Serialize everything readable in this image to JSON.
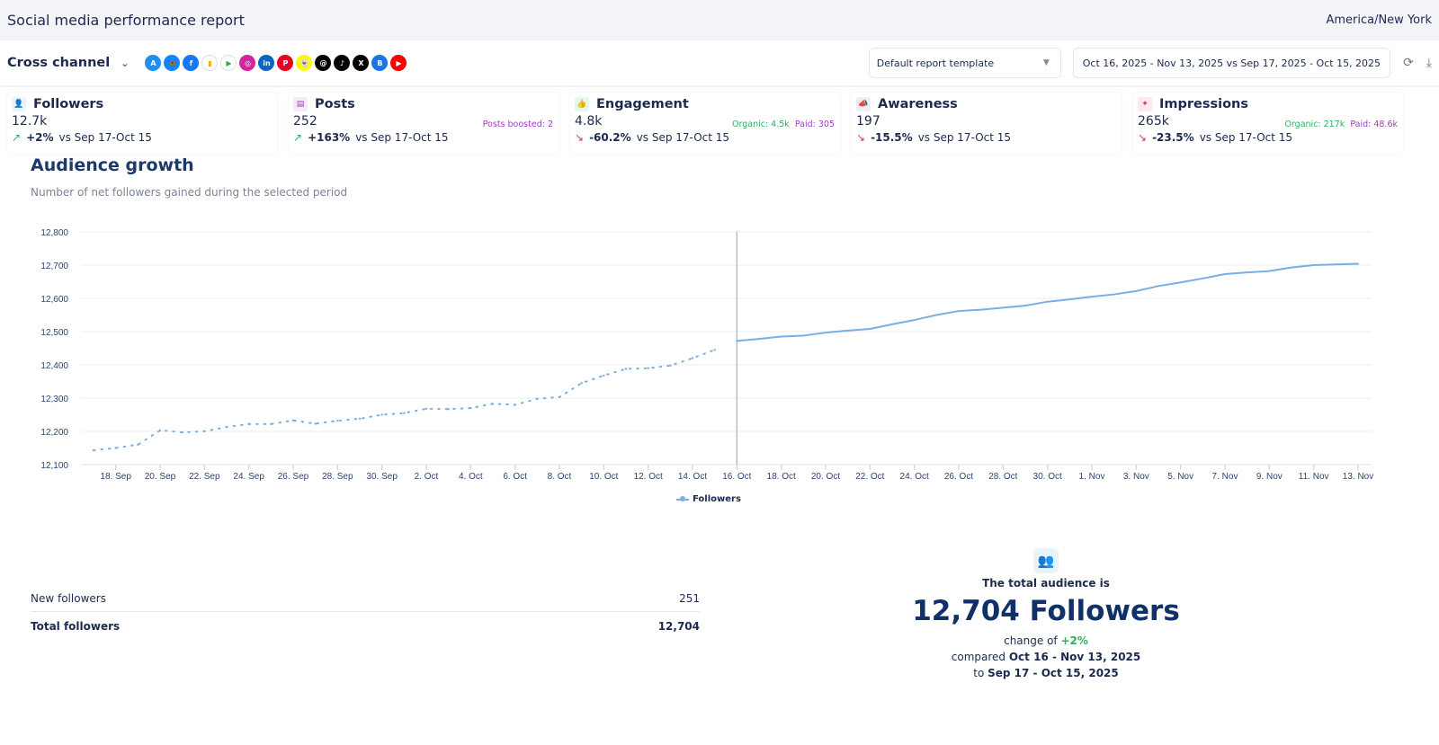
{
  "header": {
    "title": "Social media performance report",
    "timezone": "America/New York"
  },
  "toolbar": {
    "channel": "Cross channel",
    "template": "Default report template",
    "date_range": "Oct 16, 2025 - Nov 13, 2025 vs Sep 17, 2025 - Oct 15, 2025",
    "networks": [
      {
        "name": "app-store",
        "glyph": "A",
        "color": "#1f8ef1"
      },
      {
        "name": "bluesky",
        "glyph": "🦋",
        "color": "#1185fe"
      },
      {
        "name": "facebook",
        "glyph": "f",
        "color": "#1877f2"
      },
      {
        "name": "google-analytics",
        "glyph": "▮",
        "color": "#f9ab00"
      },
      {
        "name": "google-play",
        "glyph": "▶",
        "color": "#34a853"
      },
      {
        "name": "instagram",
        "glyph": "◎",
        "color": "#d6249f"
      },
      {
        "name": "linkedin",
        "glyph": "in",
        "color": "#0a66c2"
      },
      {
        "name": "pinterest",
        "glyph": "P",
        "color": "#e60023"
      },
      {
        "name": "snapchat",
        "glyph": "👻",
        "color": "#fffc00"
      },
      {
        "name": "threads",
        "glyph": "@",
        "color": "#000000"
      },
      {
        "name": "tiktok",
        "glyph": "♪",
        "color": "#000000"
      },
      {
        "name": "x",
        "glyph": "X",
        "color": "#000000"
      },
      {
        "name": "google-business",
        "glyph": "B",
        "color": "#1a73e8"
      },
      {
        "name": "youtube",
        "glyph": "▶",
        "color": "#ff0000"
      }
    ]
  },
  "cards": [
    {
      "title": "Followers",
      "value": "12.7k",
      "extra1": "",
      "extra2": "",
      "change": "+2%",
      "dir": "up",
      "vs": "vs Sep 17-Oct 15",
      "icon": "users-icon",
      "color": "#3a9bd5",
      "bg": "#e8f4fb"
    },
    {
      "title": "Posts",
      "value": "252",
      "extra1": "",
      "extra2": "Posts boosted: 2",
      "change": "+163%",
      "dir": "up",
      "vs": "vs Sep 17-Oct 15",
      "icon": "document-icon",
      "color": "#9b3fbf",
      "bg": "#f3eaf8"
    },
    {
      "title": "Engagement",
      "value": "4.8k",
      "extra1": "Organic: 4.5k",
      "extra2": "Paid: 305",
      "change": "-60.2%",
      "dir": "down",
      "vs": "vs Sep 17-Oct 15",
      "icon": "thumbs-up-icon",
      "color": "#2fae60",
      "bg": "#e7f6ec"
    },
    {
      "title": "Awareness",
      "value": "197",
      "extra1": "",
      "extra2": "",
      "change": "-15.5%",
      "dir": "down",
      "vs": "vs Sep 17-Oct 15",
      "icon": "megaphone-icon",
      "color": "#9b3fbf",
      "bg": "#f3eaf8"
    },
    {
      "title": "Impressions",
      "value": "265k",
      "extra1": "Organic: 217k",
      "extra2": "Paid: 48.6k",
      "change": "-23.5%",
      "dir": "down",
      "vs": "vs Sep 17-Oct 15",
      "icon": "sparkle-icon",
      "color": "#d8386b",
      "bg": "#fce8ee"
    }
  ],
  "section": {
    "title": "Audience growth",
    "subtitle": "Number of net followers gained during the selected period"
  },
  "chart_data": {
    "type": "line",
    "ylim": [
      12100,
      12800
    ],
    "yticks": [
      "12,100",
      "12,200",
      "12,300",
      "12,400",
      "12,500",
      "12,600",
      "12,700",
      "12,800"
    ],
    "grid": true,
    "legend": "bottom",
    "xticks": [
      "18. Sep",
      "20. Sep",
      "22. Sep",
      "24. Sep",
      "26. Sep",
      "28. Sep",
      "30. Sep",
      "2. Oct",
      "4. Oct",
      "6. Oct",
      "8. Oct",
      "10. Oct",
      "12. Oct",
      "14. Oct",
      "16. Oct",
      "18. Oct",
      "20. Oct",
      "22. Oct",
      "24. Oct",
      "26. Oct",
      "28. Oct",
      "30. Oct",
      "1. Nov",
      "3. Nov",
      "5. Nov",
      "7. Nov",
      "9. Nov",
      "11. Nov",
      "13. Nov"
    ],
    "series": [
      {
        "name": "Followers",
        "period": "Sep 17 - Oct 15",
        "style": "dotted",
        "color": "#7aaee3",
        "x": [
          "17 Sep",
          "18 Sep",
          "19 Sep",
          "20 Sep",
          "21 Sep",
          "22 Sep",
          "23 Sep",
          "24 Sep",
          "25 Sep",
          "26 Sep",
          "27 Sep",
          "28 Sep",
          "29 Sep",
          "30 Sep",
          "1 Oct",
          "2 Oct",
          "3 Oct",
          "4 Oct",
          "5 Oct",
          "6 Oct",
          "7 Oct",
          "8 Oct",
          "9 Oct",
          "10 Oct",
          "11 Oct",
          "12 Oct",
          "13 Oct",
          "14 Oct",
          "15 Oct"
        ],
        "values": [
          12143,
          12150,
          12160,
          12203,
          12197,
          12200,
          12213,
          12222,
          12222,
          12233,
          12223,
          12232,
          12238,
          12250,
          12255,
          12268,
          12267,
          12270,
          12283,
          12280,
          12298,
          12303,
          12345,
          12368,
          12388,
          12390,
          12398,
          12420,
          12445
        ]
      },
      {
        "name": "Followers",
        "period": "Oct 16 - Nov 13",
        "style": "solid",
        "color": "#7aaee3",
        "x": [
          "16 Oct",
          "17 Oct",
          "18 Oct",
          "19 Oct",
          "20 Oct",
          "21 Oct",
          "22 Oct",
          "23 Oct",
          "24 Oct",
          "25 Oct",
          "26 Oct",
          "27 Oct",
          "28 Oct",
          "29 Oct",
          "30 Oct",
          "31 Oct",
          "1 Nov",
          "2 Nov",
          "3 Nov",
          "4 Nov",
          "5 Nov",
          "6 Nov",
          "7 Nov",
          "8 Nov",
          "9 Nov",
          "10 Nov",
          "11 Nov",
          "12 Nov",
          "13 Nov"
        ],
        "values": [
          12472,
          12478,
          12485,
          12488,
          12497,
          12503,
          12508,
          12522,
          12535,
          12550,
          12562,
          12566,
          12572,
          12578,
          12590,
          12597,
          12605,
          12612,
          12622,
          12637,
          12648,
          12660,
          12673,
          12678,
          12682,
          12693,
          12700,
          12702,
          12704
        ]
      }
    ]
  },
  "legend": {
    "label": "Followers"
  },
  "stats": {
    "new_label": "New followers",
    "new_value": "251",
    "total_label": "Total followers",
    "total_value": "12,704"
  },
  "summary": {
    "label": "The total audience is",
    "big": "12,704 Followers",
    "change_prefix": "change of",
    "change": "+2%",
    "compared_prefix": "compared",
    "current": "Oct 16 - Nov 13, 2025",
    "to_prefix": "to",
    "previous": "Sep 17 - Oct 15, 2025"
  }
}
